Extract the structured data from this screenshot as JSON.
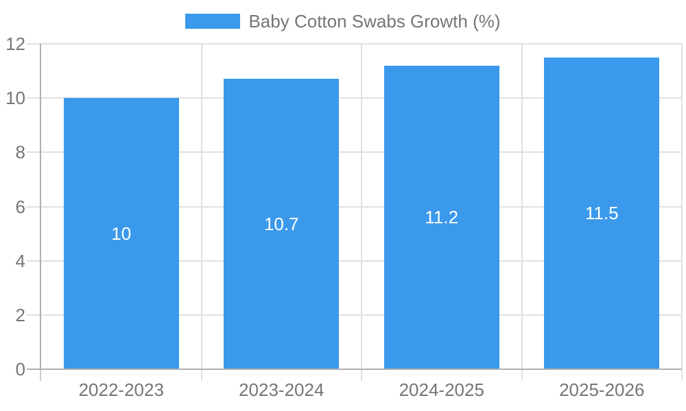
{
  "chart_data": {
    "type": "bar",
    "title": "",
    "legend_label": "Baby Cotton Swabs Growth (%)",
    "legend_position": "top-center",
    "categories": [
      "2022-2023",
      "2023-2024",
      "2024-2025",
      "2025-2026"
    ],
    "values": [
      10,
      10.7,
      11.2,
      11.5
    ],
    "value_labels": [
      "10",
      "10.7",
      "11.2",
      "11.5"
    ],
    "xlabel": "",
    "ylabel": "",
    "ylim": [
      0,
      12
    ],
    "yticks": [
      0,
      2,
      4,
      6,
      8,
      10,
      12
    ],
    "grid": true
  },
  "colors": {
    "bar": "#3b99ec",
    "axis_line": "#b0b0b0",
    "gridline": "#e0e0e0",
    "tick_below_axis": "#cccccc",
    "label_text": "#757575",
    "bar_value_text": "#ffffff",
    "background": "#ffffff"
  }
}
